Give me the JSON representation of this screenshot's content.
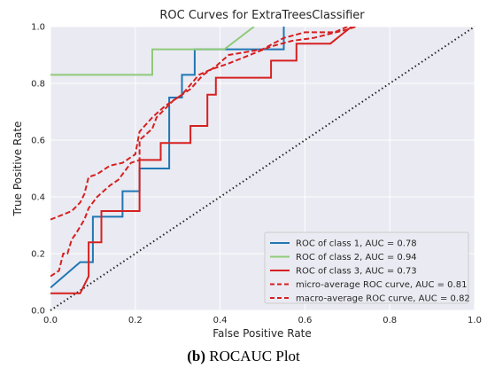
{
  "chart_data": {
    "type": "line",
    "title": "ROC Curves for ExtraTreesClassifier",
    "xlabel": "False Positive Rate",
    "ylabel": "True Positive Rate",
    "xlim": [
      0,
      1
    ],
    "ylim": [
      0,
      1
    ],
    "xticks": [
      0.0,
      0.2,
      0.4,
      0.6,
      0.8,
      1.0
    ],
    "yticks": [
      0.0,
      0.2,
      0.4,
      0.6,
      0.8,
      1.0
    ],
    "xtick_labels": [
      "0.0",
      "0.2",
      "0.4",
      "0.6",
      "0.8",
      "1.0"
    ],
    "ytick_labels": [
      "0.0",
      "0.2",
      "0.4",
      "0.6",
      "0.8",
      "1.0"
    ],
    "grid": true,
    "legend_position": "bottom-right",
    "series": [
      {
        "name": "ROC of class 1, AUC = 0.78",
        "color": "#1f77b4",
        "style": "solid",
        "points": [
          [
            0,
            0.08
          ],
          [
            0.07,
            0.17
          ],
          [
            0.1,
            0.17
          ],
          [
            0.1,
            0.33
          ],
          [
            0.17,
            0.33
          ],
          [
            0.17,
            0.42
          ],
          [
            0.21,
            0.42
          ],
          [
            0.21,
            0.5
          ],
          [
            0.28,
            0.5
          ],
          [
            0.28,
            0.75
          ],
          [
            0.31,
            0.75
          ],
          [
            0.31,
            0.83
          ],
          [
            0.34,
            0.83
          ],
          [
            0.34,
            0.92
          ],
          [
            0.55,
            0.92
          ],
          [
            0.55,
            1.0
          ]
        ]
      },
      {
        "name": "ROC of class 2, AUC = 0.94",
        "color": "#8fca7a",
        "style": "solid",
        "points": [
          [
            0,
            0.83
          ],
          [
            0.24,
            0.83
          ],
          [
            0.24,
            0.92
          ],
          [
            0.41,
            0.92
          ],
          [
            0.48,
            1.0
          ]
        ]
      },
      {
        "name": "ROC of class 3, AUC = 0.73",
        "color": "#d62020",
        "style": "solid",
        "points": [
          [
            0,
            0.06
          ],
          [
            0.07,
            0.06
          ],
          [
            0.09,
            0.12
          ],
          [
            0.09,
            0.24
          ],
          [
            0.12,
            0.24
          ],
          [
            0.12,
            0.35
          ],
          [
            0.21,
            0.35
          ],
          [
            0.21,
            0.53
          ],
          [
            0.26,
            0.53
          ],
          [
            0.26,
            0.59
          ],
          [
            0.33,
            0.59
          ],
          [
            0.33,
            0.65
          ],
          [
            0.37,
            0.65
          ],
          [
            0.37,
            0.76
          ],
          [
            0.39,
            0.76
          ],
          [
            0.39,
            0.82
          ],
          [
            0.52,
            0.82
          ],
          [
            0.52,
            0.88
          ],
          [
            0.58,
            0.88
          ],
          [
            0.58,
            0.94
          ],
          [
            0.66,
            0.94
          ],
          [
            0.71,
            1.0
          ]
        ]
      },
      {
        "name": "micro-average ROC curve, AUC = 0.81",
        "color": "#d62020",
        "style": "dashed",
        "points": [
          [
            0,
            0.12
          ],
          [
            0.02,
            0.14
          ],
          [
            0.03,
            0.2
          ],
          [
            0.04,
            0.2
          ],
          [
            0.05,
            0.25
          ],
          [
            0.06,
            0.27
          ],
          [
            0.08,
            0.32
          ],
          [
            0.09,
            0.36
          ],
          [
            0.11,
            0.4
          ],
          [
            0.14,
            0.44
          ],
          [
            0.16,
            0.46
          ],
          [
            0.19,
            0.52
          ],
          [
            0.21,
            0.53
          ],
          [
            0.21,
            0.6
          ],
          [
            0.24,
            0.64
          ],
          [
            0.25,
            0.68
          ],
          [
            0.29,
            0.74
          ],
          [
            0.31,
            0.76
          ],
          [
            0.35,
            0.83
          ],
          [
            0.38,
            0.85
          ],
          [
            0.42,
            0.87
          ],
          [
            0.47,
            0.9
          ],
          [
            0.52,
            0.93
          ],
          [
            0.57,
            0.95
          ],
          [
            0.62,
            0.96
          ],
          [
            0.7,
            0.99
          ],
          [
            0.72,
            1.0
          ]
        ]
      },
      {
        "name": "macro-average ROC curve, AUC = 0.82",
        "color": "#d62020",
        "style": "dashed",
        "points": [
          [
            0,
            0.32
          ],
          [
            0.05,
            0.35
          ],
          [
            0.07,
            0.38
          ],
          [
            0.08,
            0.41
          ],
          [
            0.09,
            0.47
          ],
          [
            0.11,
            0.48
          ],
          [
            0.14,
            0.51
          ],
          [
            0.17,
            0.52
          ],
          [
            0.2,
            0.55
          ],
          [
            0.21,
            0.63
          ],
          [
            0.24,
            0.68
          ],
          [
            0.27,
            0.72
          ],
          [
            0.3,
            0.75
          ],
          [
            0.33,
            0.78
          ],
          [
            0.36,
            0.83
          ],
          [
            0.39,
            0.86
          ],
          [
            0.42,
            0.9
          ],
          [
            0.5,
            0.92
          ],
          [
            0.55,
            0.96
          ],
          [
            0.6,
            0.98
          ],
          [
            0.67,
            0.98
          ],
          [
            0.7,
            1.0
          ]
        ]
      }
    ]
  },
  "caption": {
    "label": "(b)",
    "text": " ROCAUC Plot"
  }
}
